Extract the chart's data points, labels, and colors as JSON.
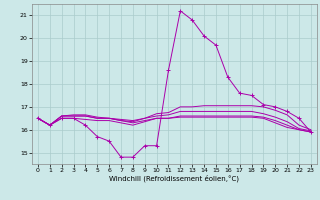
{
  "xlabel": "Windchill (Refroidissement éolien,°C)",
  "x": [
    0,
    1,
    2,
    3,
    4,
    5,
    6,
    7,
    8,
    9,
    10,
    11,
    12,
    13,
    14,
    15,
    16,
    17,
    18,
    19,
    20,
    21,
    22,
    23
  ],
  "line1": [
    16.5,
    16.2,
    16.5,
    16.5,
    16.2,
    15.7,
    15.5,
    14.8,
    14.8,
    15.3,
    15.3,
    18.6,
    21.2,
    20.8,
    20.1,
    19.7,
    18.3,
    17.6,
    17.5,
    17.1,
    17.0,
    16.8,
    16.5,
    15.9
  ],
  "line2": [
    16.5,
    16.2,
    16.6,
    16.65,
    16.65,
    16.55,
    16.5,
    16.45,
    16.4,
    16.5,
    16.7,
    16.75,
    17.0,
    17.0,
    17.05,
    17.05,
    17.05,
    17.05,
    17.05,
    17.0,
    16.85,
    16.65,
    16.2,
    16.0
  ],
  "line3": [
    16.5,
    16.2,
    16.6,
    16.6,
    16.6,
    16.5,
    16.5,
    16.4,
    16.35,
    16.5,
    16.6,
    16.65,
    16.8,
    16.8,
    16.8,
    16.8,
    16.8,
    16.8,
    16.8,
    16.7,
    16.55,
    16.35,
    16.05,
    15.95
  ],
  "line4": [
    16.5,
    16.2,
    16.6,
    16.6,
    16.6,
    16.5,
    16.5,
    16.4,
    16.3,
    16.4,
    16.5,
    16.5,
    16.55,
    16.55,
    16.55,
    16.55,
    16.55,
    16.55,
    16.55,
    16.5,
    16.3,
    16.1,
    16.0,
    15.9
  ],
  "line5": [
    16.5,
    16.2,
    16.5,
    16.5,
    16.45,
    16.4,
    16.4,
    16.3,
    16.2,
    16.35,
    16.5,
    16.5,
    16.6,
    16.6,
    16.6,
    16.6,
    16.6,
    16.6,
    16.6,
    16.55,
    16.4,
    16.2,
    16.0,
    15.9
  ],
  "line_color": "#aa00aa",
  "bg_color": "#cce8e8",
  "grid_color": "#aacccc",
  "ylim": [
    14.5,
    21.5
  ],
  "xlim": [
    -0.5,
    23.5
  ],
  "yticks": [
    15,
    16,
    17,
    18,
    19,
    20,
    21
  ],
  "xticks": [
    0,
    1,
    2,
    3,
    4,
    5,
    6,
    7,
    8,
    9,
    10,
    11,
    12,
    13,
    14,
    15,
    16,
    17,
    18,
    19,
    20,
    21,
    22,
    23
  ]
}
